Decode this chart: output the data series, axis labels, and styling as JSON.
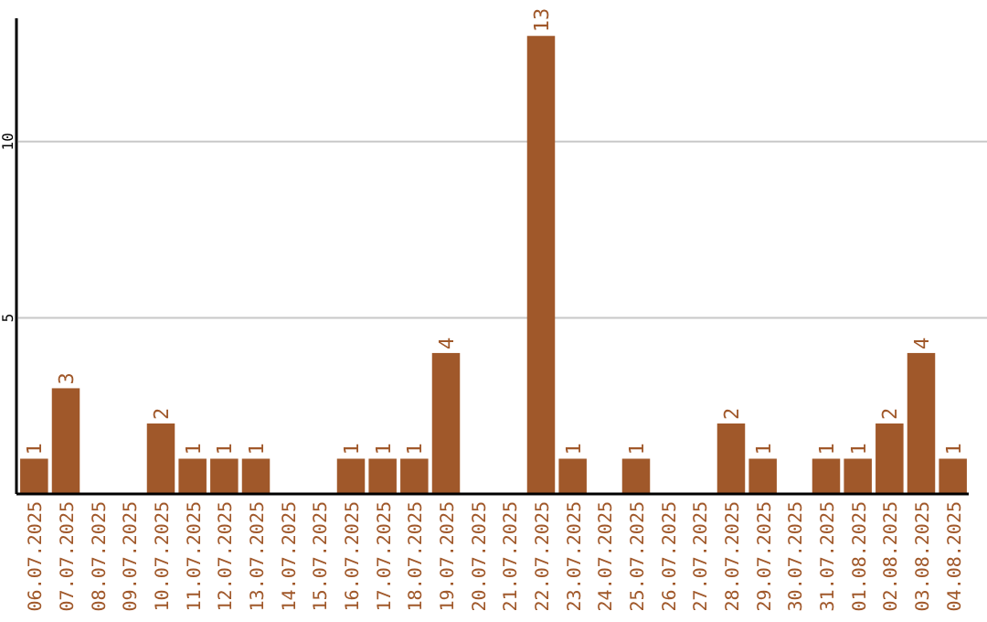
{
  "chart_data": {
    "type": "bar",
    "categories": [
      "06.07.2025",
      "07.07.2025",
      "08.07.2025",
      "09.07.2025",
      "10.07.2025",
      "11.07.2025",
      "12.07.2025",
      "13.07.2025",
      "14.07.2025",
      "15.07.2025",
      "16.07.2025",
      "17.07.2025",
      "18.07.2025",
      "19.07.2025",
      "20.07.2025",
      "21.07.2025",
      "22.07.2025",
      "23.07.2025",
      "24.07.2025",
      "25.07.2025",
      "26.07.2025",
      "27.07.2025",
      "28.07.2025",
      "29.07.2025",
      "30.07.2025",
      "31.07.2025",
      "01.08.2025",
      "02.08.2025",
      "03.08.2025",
      "04.08.2025"
    ],
    "values": [
      1,
      3,
      0,
      0,
      2,
      1,
      1,
      1,
      0,
      0,
      1,
      1,
      1,
      4,
      0,
      0,
      13,
      1,
      0,
      1,
      0,
      0,
      2,
      1,
      0,
      1,
      1,
      2,
      4,
      1
    ],
    "value_labels": [
      "1",
      "3",
      null,
      null,
      "2",
      "1",
      "1",
      "1",
      null,
      null,
      "1",
      "1",
      "1",
      "4",
      null,
      null,
      "13",
      "1",
      null,
      "1",
      null,
      null,
      "2",
      "1",
      null,
      "1",
      "1",
      "2",
      "4",
      "1"
    ],
    "color": "#a0582a",
    "ylim": [
      0,
      13.5
    ],
    "yticks": [
      5,
      10
    ],
    "grid": "y"
  }
}
